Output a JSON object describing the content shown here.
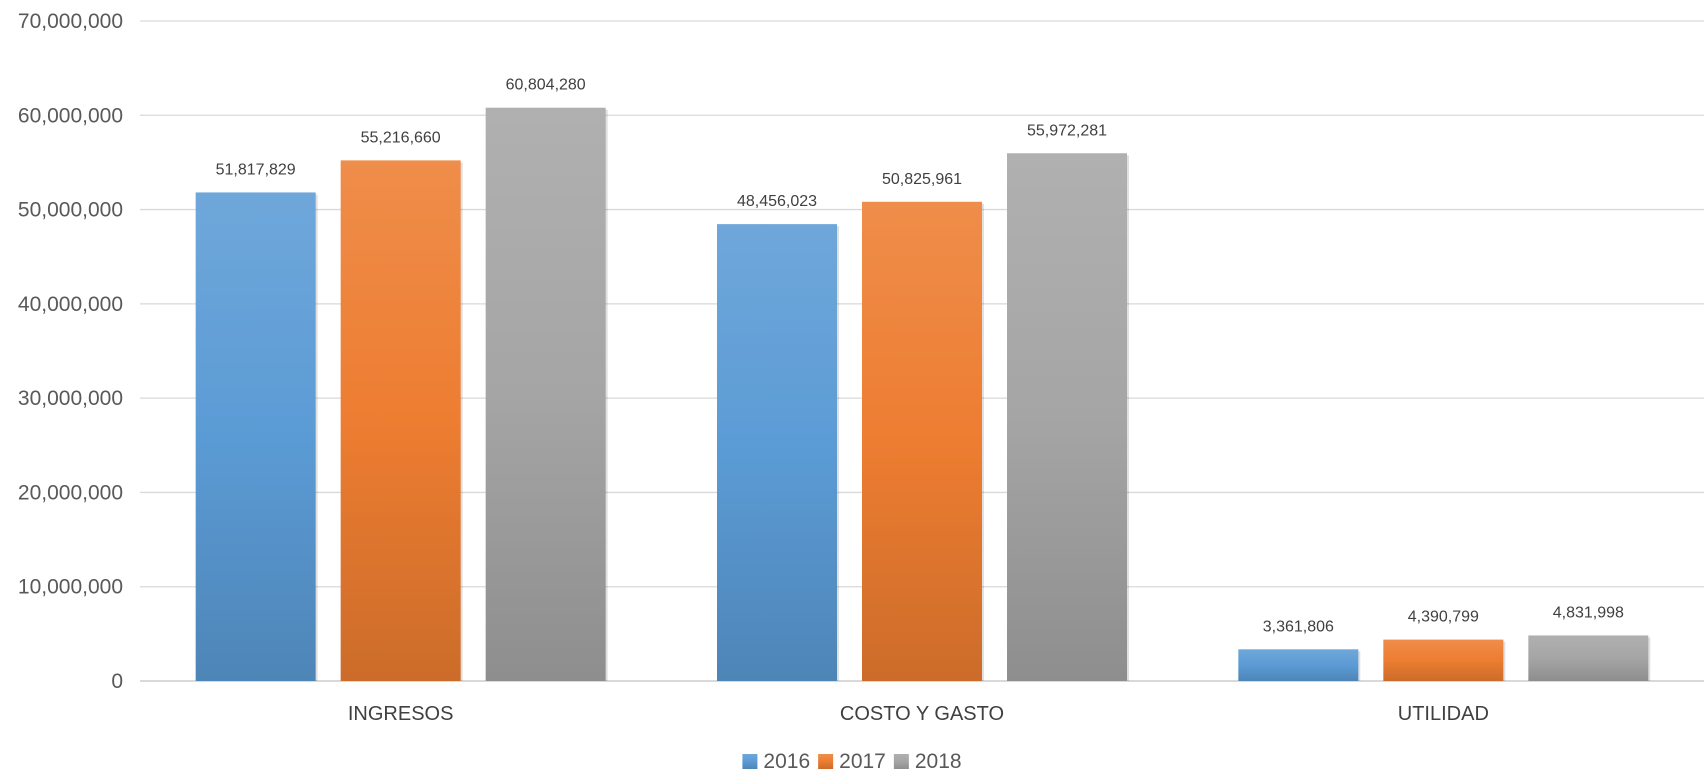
{
  "chart_data": {
    "type": "bar",
    "title": "",
    "xlabel": "",
    "ylabel": "",
    "categories": [
      "INGRESOS",
      "COSTO Y GASTO",
      "UTILIDAD"
    ],
    "series": [
      {
        "name": "2016",
        "color": "#5b9bd5",
        "values": [
          51817829,
          48456023,
          3361806
        ],
        "labels": [
          "51,817,829",
          "48,456,023",
          "3,361,806"
        ]
      },
      {
        "name": "2017",
        "color": "#ed7d31",
        "values": [
          55216660,
          50825961,
          4390799
        ],
        "labels": [
          "55,216,660",
          "50,825,961",
          "4,390,799"
        ]
      },
      {
        "name": "2018",
        "color": "#a5a5a5",
        "values": [
          60804280,
          55972281,
          4831998
        ],
        "labels": [
          "60,804,280",
          "55,972,281",
          "4,831,998"
        ]
      }
    ],
    "ylim": [
      0,
      70000000
    ],
    "yticks": [
      0,
      10000000,
      20000000,
      30000000,
      40000000,
      50000000,
      60000000,
      70000000
    ],
    "ytick_labels": [
      "0",
      "10,000,000",
      "20,000,000",
      "30,000,000",
      "40,000,000",
      "50,000,000",
      "60,000,000",
      "70,000,000"
    ],
    "grid": true,
    "legend_position": "bottom-center"
  }
}
